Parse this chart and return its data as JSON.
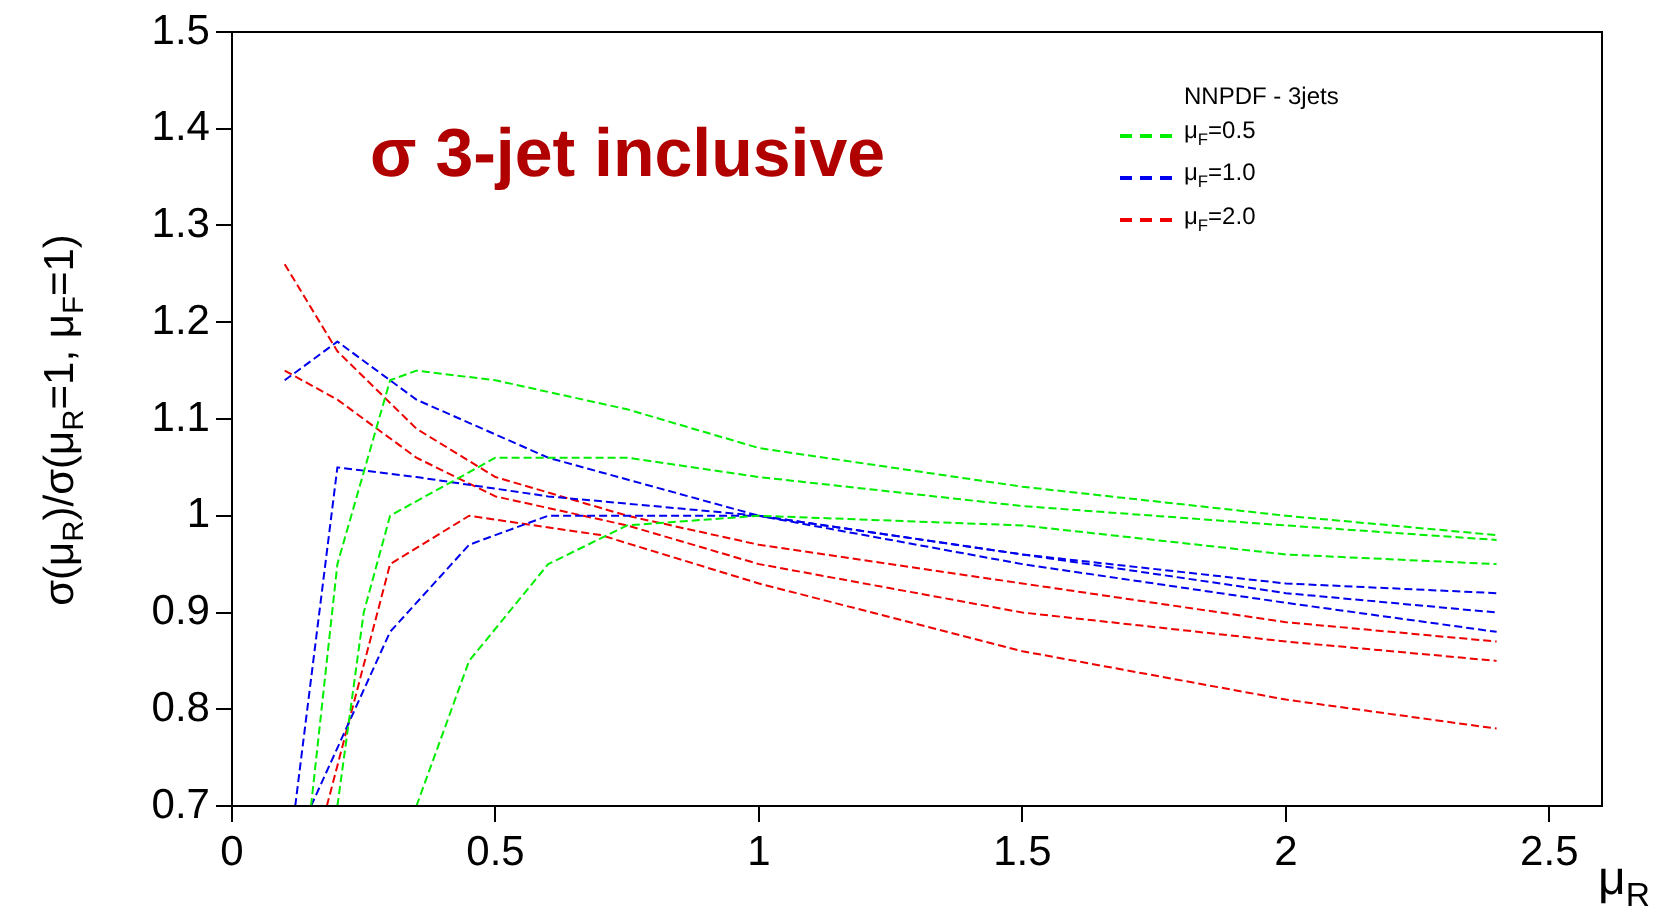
{
  "chart_data": {
    "type": "line",
    "title": "σ 3-jet inclusive",
    "xlabel": "μ$_{R}$",
    "ylabel": "σ(μ$_{R}$)/σ(μ$_{R}$=1, μ$_{F}$=1)",
    "legend_title": "NNPDF - 3jets",
    "legend": "top right",
    "line_style": "dashed",
    "marker": "none",
    "grid": false,
    "xlim": [
      0,
      2.6
    ],
    "xticks": [
      0,
      0.5,
      1,
      1.5,
      2,
      2.5
    ],
    "ylim": [
      0.7,
      1.5
    ],
    "yticks": [
      0.7,
      0.8,
      0.9,
      1,
      1.1,
      1.2,
      1.3,
      1.4,
      1.5
    ],
    "series": [
      {
        "name": "μ$_{F}$=0.5",
        "color": "#00ee00",
        "x": [
          0.15,
          0.2,
          0.3,
          0.35,
          0.5,
          0.75,
          1,
          1.5,
          2,
          2.4
        ],
        "values": [
          0.7,
          0.95,
          1.14,
          1.15,
          1.14,
          1.11,
          1.07,
          1.03,
          1,
          0.98
        ]
      },
      {
        "color": "#00ee00",
        "x": [
          0.2,
          0.25,
          0.3,
          0.5,
          0.75,
          1,
          1.5,
          2,
          2.4
        ],
        "values": [
          0.7,
          0.9,
          1,
          1.06,
          1.06,
          1.04,
          1.01,
          0.99,
          0.975
        ]
      },
      {
        "color": "#00ee00",
        "x": [
          0.35,
          0.45,
          0.6,
          0.75,
          1,
          1.5,
          2,
          2.4
        ],
        "values": [
          0.7,
          0.85,
          0.95,
          0.99,
          1,
          0.99,
          0.96,
          0.95
        ]
      },
      {
        "name": "μ$_{F}$=1.0",
        "color": "#0000ee",
        "x": [
          0.1,
          0.2,
          0.35,
          0.6,
          1,
          1.5,
          2,
          2.4
        ],
        "values": [
          1.14,
          1.18,
          1.12,
          1.06,
          1,
          0.96,
          0.93,
          0.92
        ]
      },
      {
        "color": "#0000ee",
        "x": [
          0.12,
          0.2,
          0.35,
          0.6,
          1,
          1.5,
          2,
          2.4
        ],
        "values": [
          0.7,
          1.05,
          1.04,
          1.02,
          1,
          0.96,
          0.92,
          0.9
        ]
      },
      {
        "color": "#0000ee",
        "x": [
          0.15,
          0.3,
          0.45,
          0.6,
          1,
          1.5,
          2,
          2.4
        ],
        "values": [
          0.7,
          0.88,
          0.97,
          1,
          1,
          0.95,
          0.91,
          0.88
        ]
      },
      {
        "name": "μ$_{F}$=2.0",
        "color": "#ee0000",
        "x": [
          0.1,
          0.2,
          0.35,
          0.5,
          0.75,
          1,
          1.5,
          2,
          2.4
        ],
        "values": [
          1.26,
          1.17,
          1.09,
          1.04,
          1,
          0.97,
          0.93,
          0.89,
          0.87
        ]
      },
      {
        "color": "#ee0000",
        "x": [
          0.1,
          0.2,
          0.35,
          0.5,
          0.75,
          1,
          1.5,
          2,
          2.4
        ],
        "values": [
          1.15,
          1.12,
          1.06,
          1.02,
          0.99,
          0.95,
          0.9,
          0.87,
          0.85
        ]
      },
      {
        "color": "#ee0000",
        "x": [
          0.18,
          0.3,
          0.45,
          0.7,
          1,
          1.5,
          2,
          2.4
        ],
        "values": [
          0.7,
          0.95,
          1,
          0.98,
          0.93,
          0.86,
          0.81,
          0.78
        ]
      }
    ]
  }
}
